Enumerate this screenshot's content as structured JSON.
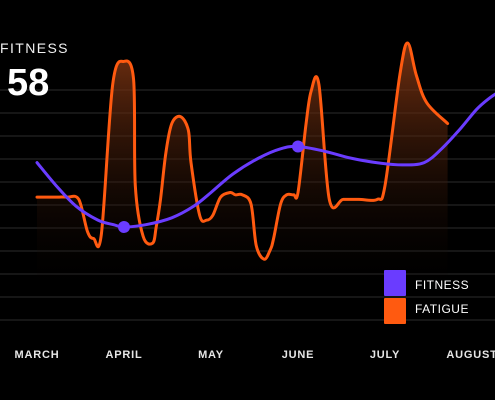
{
  "metric": {
    "label": "FITNESS",
    "value": "58"
  },
  "colors": {
    "fitness": "#6a3cff",
    "fatigue": "#ff5a10",
    "background": "#000000",
    "grid": "#2b2b2b"
  },
  "chart_data": {
    "type": "line",
    "title": "",
    "xlabel": "",
    "ylabel": "",
    "grid": true,
    "legend_position": "bottom-right",
    "categories": [
      "MARCH",
      "APRIL",
      "MAY",
      "JUNE",
      "JULY",
      "AUGUST"
    ],
    "x": [
      0,
      0.13,
      0.24,
      0.35,
      0.48,
      0.58,
      0.65,
      0.74,
      0.87,
      1.0,
      1.11,
      1.13,
      1.22,
      1.33,
      1.37,
      1.42,
      1.48,
      1.55,
      1.65,
      1.74,
      1.77,
      1.87,
      1.95,
      2.02,
      2.11,
      2.22,
      2.28,
      2.36,
      2.46,
      2.52,
      2.61,
      2.68,
      2.72,
      2.8,
      2.87,
      2.95,
      3.0,
      3.09,
      3.15,
      3.24,
      3.36,
      3.52,
      3.7,
      3.91,
      4.0,
      4.17,
      4.26,
      4.36,
      4.48,
      4.72,
      4.87,
      5.0,
      5.11,
      5.24,
      5.36
    ],
    "ylim": [
      0,
      100
    ],
    "series": [
      {
        "name": "FITNESS",
        "points": [
          [
            0.0,
            58
          ],
          [
            0.22,
            48
          ],
          [
            0.45,
            39
          ],
          [
            0.7,
            33
          ],
          [
            0.88,
            31
          ],
          [
            1.0,
            30
          ],
          [
            1.25,
            31
          ],
          [
            1.55,
            34
          ],
          [
            1.8,
            39
          ],
          [
            2.0,
            45
          ],
          [
            2.25,
            53
          ],
          [
            2.55,
            60
          ],
          [
            2.8,
            64
          ],
          [
            3.0,
            65
          ],
          [
            3.3,
            63
          ],
          [
            3.6,
            60
          ],
          [
            3.9,
            58
          ],
          [
            4.2,
            57
          ],
          [
            4.45,
            58
          ],
          [
            4.65,
            64
          ],
          [
            4.85,
            72
          ],
          [
            5.05,
            81
          ],
          [
            5.2,
            86
          ],
          [
            5.36,
            90
          ]
        ]
      },
      {
        "name": "FATIGUE",
        "points": [
          [
            0.0,
            43
          ],
          [
            0.13,
            43
          ],
          [
            0.24,
            43
          ],
          [
            0.35,
            43
          ],
          [
            0.48,
            42
          ],
          [
            0.58,
            28
          ],
          [
            0.65,
            25
          ],
          [
            0.74,
            27
          ],
          [
            0.87,
            92
          ],
          [
            1.0,
            102
          ],
          [
            1.11,
            94
          ],
          [
            1.13,
            48
          ],
          [
            1.22,
            26
          ],
          [
            1.33,
            23
          ],
          [
            1.37,
            30
          ],
          [
            1.42,
            42
          ],
          [
            1.48,
            62
          ],
          [
            1.55,
            75
          ],
          [
            1.65,
            78
          ],
          [
            1.74,
            72
          ],
          [
            1.77,
            58
          ],
          [
            1.87,
            35
          ],
          [
            1.95,
            33
          ],
          [
            2.02,
            35
          ],
          [
            2.11,
            43
          ],
          [
            2.22,
            45
          ],
          [
            2.28,
            44
          ],
          [
            2.36,
            44
          ],
          [
            2.46,
            40
          ],
          [
            2.52,
            22
          ],
          [
            2.61,
            16
          ],
          [
            2.68,
            20
          ],
          [
            2.72,
            25
          ],
          [
            2.8,
            40
          ],
          [
            2.87,
            44
          ],
          [
            2.95,
            44
          ],
          [
            3.0,
            45
          ],
          [
            3.09,
            74
          ],
          [
            3.15,
            89
          ],
          [
            3.24,
            92
          ],
          [
            3.36,
            42
          ],
          [
            3.52,
            42
          ],
          [
            3.7,
            42
          ],
          [
            3.91,
            42
          ],
          [
            4.0,
            48
          ],
          [
            4.17,
            96
          ],
          [
            4.26,
            110
          ],
          [
            4.36,
            96
          ],
          [
            4.48,
            84
          ],
          [
            4.72,
            75
          ]
        ]
      }
    ],
    "markers": [
      {
        "series": "FITNESS",
        "x": 1.0,
        "y": 30
      },
      {
        "series": "FITNESS",
        "x": 3.0,
        "y": 65
      }
    ]
  }
}
